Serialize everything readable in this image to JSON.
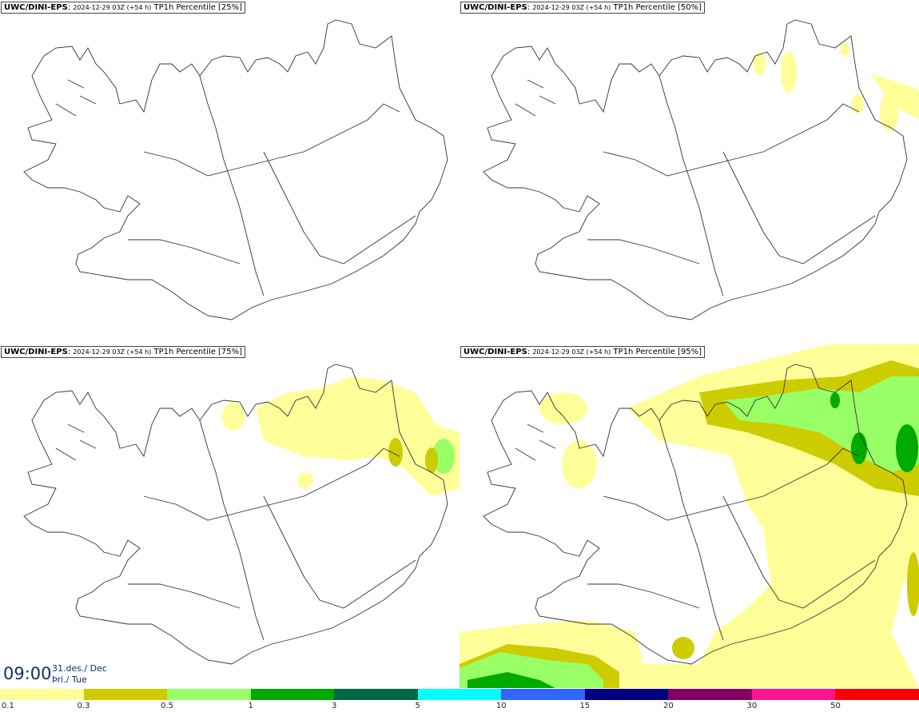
{
  "panels": [
    {
      "model": "UWC/DINI-EPS",
      "sub": "2024-12-29 03Z (+54 h)",
      "label": "TP1h Percentile [25%]"
    },
    {
      "model": "UWC/DINI-EPS",
      "sub": "2024-12-29 03Z (+54 h)",
      "label": "TP1h Percentile [50%]"
    },
    {
      "model": "UWC/DINI-EPS",
      "sub": "2024-12-29 03Z (+54 h)",
      "label": "TP1h Percentile [75%]"
    },
    {
      "model": "UWC/DINI-EPS",
      "sub": "2024-12-29 03Z (+54 h)",
      "label": "TP1h Percentile [95%]"
    }
  ],
  "time": {
    "hour": "09:00",
    "date_line1": "31.des./ Dec",
    "date_line2": "Þri./ Tue"
  },
  "legend": {
    "ticks": [
      "0.1",
      "0.3",
      "0.5",
      "1",
      "3",
      "5",
      "10",
      "15",
      "20",
      "30",
      "50"
    ],
    "colors": [
      "#ffff99",
      "#cccc00",
      "#99ff66",
      "#00aa00",
      "#006644",
      "#00ffff",
      "#3366ff",
      "#000080",
      "#800060",
      "#ff1493",
      "#ff0000"
    ]
  },
  "colors": {
    "land_outline": "#333333",
    "light_rain": "#ffff99",
    "medium_rain": "#cccc00",
    "green_rain": "#99ff66",
    "heavy_rain": "#00aa00"
  }
}
